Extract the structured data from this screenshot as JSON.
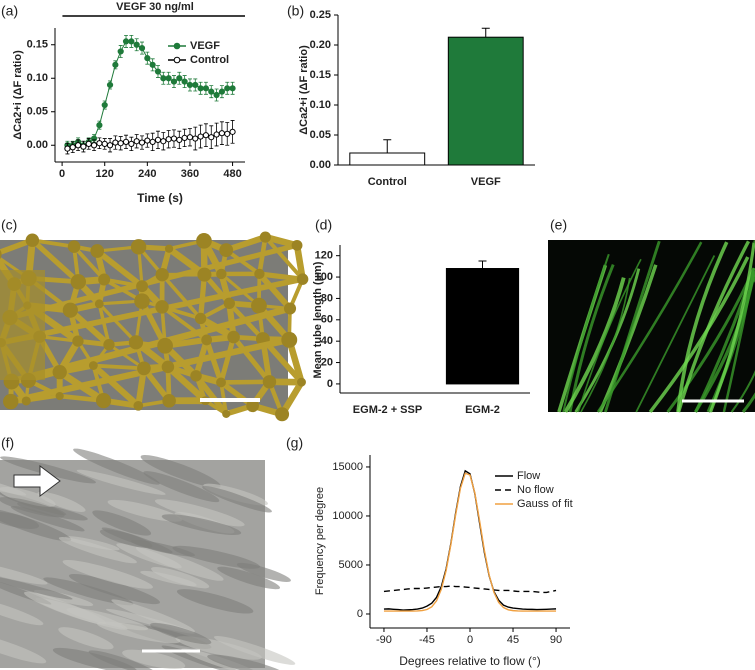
{
  "panel_labels": {
    "a": "(a)",
    "b": "(b)",
    "c": "(c)",
    "d": "(d)",
    "e": "(e)",
    "f": "(f)",
    "g": "(g)"
  },
  "chart_data": [
    {
      "type": "line",
      "annotation": "VEGF 30 ng/ml",
      "x_label": "Time (s)",
      "y_label": "ΔCa2+i (ΔF ratio)",
      "x": [
        15,
        30,
        45,
        60,
        75,
        90,
        105,
        120,
        135,
        150,
        165,
        180,
        195,
        210,
        225,
        240,
        255,
        270,
        285,
        300,
        315,
        330,
        345,
        360,
        375,
        390,
        405,
        420,
        435,
        450,
        465,
        480
      ],
      "series": [
        {
          "name": "VEGF",
          "color": "#1f7a3a",
          "marker": "filled",
          "values": [
            0.0,
            0.0,
            0.005,
            0.0,
            0.005,
            0.01,
            0.03,
            0.06,
            0.09,
            0.12,
            0.14,
            0.155,
            0.155,
            0.15,
            0.145,
            0.13,
            0.12,
            0.11,
            0.1,
            0.1,
            0.095,
            0.1,
            0.095,
            0.09,
            0.09,
            0.085,
            0.085,
            0.08,
            0.075,
            0.08,
            0.085,
            0.085
          ],
          "errors": [
            0.006,
            0.006,
            0.006,
            0.006,
            0.006,
            0.006,
            0.006,
            0.006,
            0.006,
            0.006,
            0.009,
            0.009,
            0.009,
            0.009,
            0.009,
            0.009,
            0.009,
            0.009,
            0.009,
            0.009,
            0.009,
            0.009,
            0.009,
            0.009,
            0.009,
            0.009,
            0.009,
            0.009,
            0.009,
            0.009,
            0.009,
            0.009
          ]
        },
        {
          "name": "Control",
          "color": "#000000",
          "marker": "open",
          "values": [
            -0.005,
            -0.003,
            0.0,
            -0.002,
            0.002,
            0.0,
            0.003,
            0.002,
            0.0,
            0.004,
            0.003,
            0.005,
            0.002,
            0.006,
            0.004,
            0.007,
            0.005,
            0.008,
            0.006,
            0.009,
            0.01,
            0.008,
            0.011,
            0.012,
            0.01,
            0.013,
            0.015,
            0.012,
            0.016,
            0.018,
            0.017,
            0.02
          ],
          "errors": [
            0.008,
            0.008,
            0.008,
            0.008,
            0.008,
            0.008,
            0.008,
            0.008,
            0.01,
            0.01,
            0.01,
            0.01,
            0.01,
            0.01,
            0.01,
            0.01,
            0.013,
            0.013,
            0.013,
            0.013,
            0.013,
            0.013,
            0.013,
            0.013,
            0.017,
            0.017,
            0.017,
            0.017,
            0.017,
            0.017,
            0.017,
            0.017
          ]
        }
      ],
      "xlim": [
        -20,
        515
      ],
      "xticks": [
        0,
        120,
        240,
        360,
        480
      ],
      "ylim": [
        -0.025,
        0.175
      ],
      "yticks": [
        {
          "value": 0,
          "label": "0.00"
        },
        {
          "value": 0.05,
          "label": "0.05"
        },
        {
          "value": 0.1,
          "label": "0.10"
        },
        {
          "value": 0.15,
          "label": "0.15"
        }
      ],
      "legend": "upper right"
    },
    {
      "type": "bar",
      "y_label": "ΔCa2+i (ΔF ratio)",
      "categories": [
        "Control",
        "VEGF"
      ],
      "values": [
        0.02,
        0.213
      ],
      "errors": [
        0.022,
        0.015
      ],
      "colors": [
        "#ffffff",
        "#1f7a3a"
      ],
      "ylim": [
        0,
        0.25
      ],
      "yticks": [
        {
          "value": 0,
          "label": "0.00"
        },
        {
          "value": 0.05,
          "label": "0.05"
        },
        {
          "value": 0.1,
          "label": "0.10"
        },
        {
          "value": 0.15,
          "label": "0.15"
        },
        {
          "value": 0.2,
          "label": "0.20"
        },
        {
          "value": 0.25,
          "label": "0.25"
        }
      ]
    },
    {
      "type": "bar",
      "y_label": "Mean tube length (µm)",
      "categories": [
        "EGM-2 + SSP",
        "EGM-2"
      ],
      "values": [
        0,
        108
      ],
      "errors": [
        0,
        7
      ],
      "colors": [
        "#000000",
        "#000000"
      ],
      "ylim": [
        -8.5,
        130
      ],
      "yticks": [
        0,
        20,
        40,
        60,
        80,
        100,
        120
      ]
    },
    {
      "type": "line",
      "x_label": "Degrees relative to flow (°)",
      "y_label": "Frequency per degree",
      "x": [
        -90,
        -85,
        -80,
        -75,
        -70,
        -65,
        -60,
        -55,
        -50,
        -45,
        -40,
        -35,
        -30,
        -25,
        -20,
        -15,
        -10,
        -5,
        0,
        5,
        10,
        15,
        20,
        25,
        30,
        35,
        40,
        45,
        50,
        55,
        60,
        65,
        70,
        75,
        80,
        85,
        90
      ],
      "series": [
        {
          "name": "Flow",
          "color": "#000000",
          "values": [
            500,
            520,
            480,
            450,
            400,
            420,
            450,
            500,
            600,
            800,
            1100,
            1700,
            2800,
            4600,
            7200,
            10300,
            13000,
            14600,
            14300,
            12300,
            9300,
            6300,
            3900,
            2300,
            1400,
            900,
            700,
            600,
            550,
            500,
            480,
            470,
            450,
            460,
            480,
            500,
            520
          ]
        },
        {
          "name": "No flow",
          "color": "#000000",
          "dash": true,
          "values": [
            2300,
            2350,
            2400,
            2450,
            2500,
            2550,
            2600,
            2600,
            2600,
            2650,
            2700,
            2750,
            2800,
            2800,
            2850,
            2800,
            2800,
            2750,
            2700,
            2650,
            2600,
            2550,
            2500,
            2450,
            2400,
            2400,
            2400,
            2350,
            2300,
            2300,
            2300,
            2300,
            2250,
            2200,
            2200,
            2300,
            2400
          ]
        },
        {
          "name": "Gauss of fit",
          "color": "#f0a040",
          "values": [
            300,
            300,
            300,
            300,
            300,
            301,
            303,
            310,
            351,
            456,
            733,
            1343,
            2515,
            4432,
            7088,
            10141,
            12824,
            14357,
            14177,
            12362,
            9530,
            6505,
            3978,
            2217,
            1180,
            655,
            426,
            343,
            312,
            303,
            301,
            300,
            300,
            300,
            300,
            300,
            300
          ]
        }
      ],
      "xlim": [
        -104.6,
        104.6
      ],
      "xticks": [
        -90,
        -45,
        0,
        45,
        90
      ],
      "ylim": [
        -1430,
        16220
      ],
      "yticks": [
        0,
        5000,
        10000,
        15000
      ],
      "legend": "upper right"
    }
  ]
}
